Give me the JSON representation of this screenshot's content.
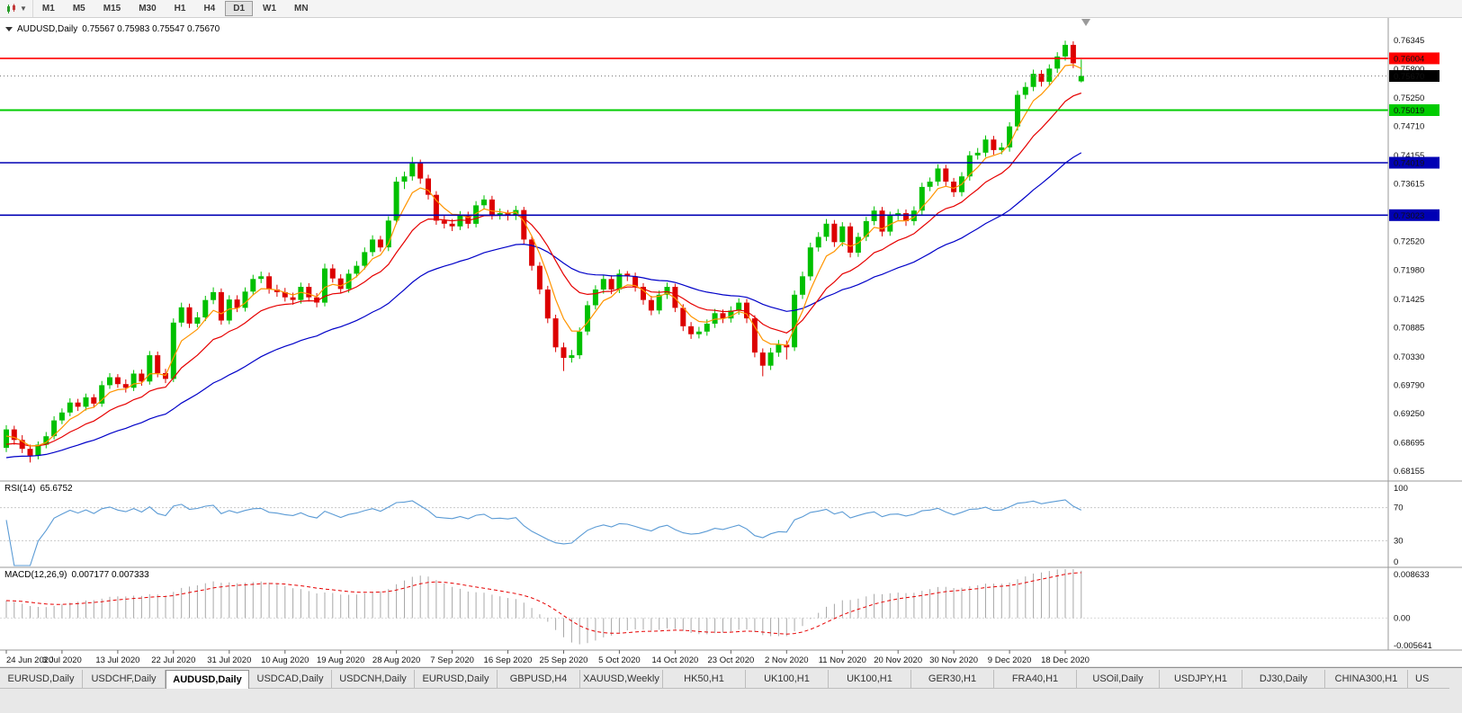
{
  "toolbar": {
    "periods": [
      "M1",
      "M5",
      "M15",
      "M30",
      "H1",
      "H4",
      "D1",
      "W1",
      "MN"
    ],
    "active_period": "D1"
  },
  "chart": {
    "title": {
      "symbol": "AUDUSD,Daily",
      "ohlc": "0.75567 0.75983 0.75547 0.75670"
    }
  },
  "colors": {
    "bull": "#00C000",
    "bear": "#DC0000",
    "ma_fast": "#FF9500",
    "ma_mid": "#E60000",
    "ma_slow": "#0000C8",
    "rsi": "#5B9BD5",
    "macd_signal": "#E60000",
    "macd_hist": "#A8A8A8",
    "level_red": "#FF0000",
    "level_green": "#00CC00",
    "level_blue": "#0000B4"
  },
  "chart_data": {
    "type": "candlestick",
    "symbol": "AUDUSD",
    "timeframe": "Daily",
    "ylim": [
      0.67985,
      0.76772
    ],
    "current_price": 0.7567,
    "price_axis_ticks": [
      "0.76345",
      "0.75800",
      "0.75250",
      "0.74710",
      "0.74155",
      "0.73615",
      "0.72520",
      "0.71980",
      "0.71425",
      "0.70885",
      "0.70330",
      "0.69790",
      "0.69250",
      "0.68695",
      "0.68155"
    ],
    "levels": [
      {
        "value": 0.76004,
        "color": "#FF0000",
        "width": 1.6
      },
      {
        "value": 0.75019,
        "color": "#00CC00",
        "width": 2
      },
      {
        "value": 0.74019,
        "color": "#0000B4",
        "width": 1.6
      },
      {
        "value": 0.73023,
        "color": "#0000B4",
        "width": 1.6
      }
    ],
    "badges": [
      {
        "value": 0.76004,
        "label": "0.76004",
        "color": "#FF0000"
      },
      {
        "value": 0.7567,
        "label": "0.75670",
        "color": "#000000"
      },
      {
        "value": 0.75019,
        "label": "0.75019",
        "color": "#00CC00"
      },
      {
        "value": 0.74019,
        "label": "0.74019",
        "color": "#0000B4"
      },
      {
        "value": 0.73023,
        "label": "0.73023",
        "color": "#0000B4"
      }
    ],
    "x_labels": [
      "24 Jun 2020",
      "3 Jul 2020",
      "13 Jul 2020",
      "22 Jul 2020",
      "31 Jul 2020",
      "10 Aug 2020",
      "19 Aug 2020",
      "28 Aug 2020",
      "7 Sep 2020",
      "16 Sep 2020",
      "25 Sep 2020",
      "5 Oct 2020",
      "14 Oct 2020",
      "23 Oct 2020",
      "2 Nov 2020",
      "11 Nov 2020",
      "20 Nov 2020",
      "30 Nov 2020",
      "9 Dec 2020",
      "18 Dec 2020"
    ],
    "x_label_indices": [
      0,
      7,
      14,
      21,
      28,
      35,
      42,
      49,
      56,
      63,
      70,
      77,
      84,
      91,
      98,
      105,
      112,
      119,
      126,
      133
    ],
    "candles": [
      [
        0.686,
        0.6903,
        0.6852,
        0.6895
      ],
      [
        0.6895,
        0.6902,
        0.6866,
        0.6875
      ],
      [
        0.6875,
        0.6884,
        0.685,
        0.6858
      ],
      [
        0.6858,
        0.6866,
        0.6832,
        0.6845
      ],
      [
        0.6845,
        0.6872,
        0.6838,
        0.6866
      ],
      [
        0.6866,
        0.689,
        0.6859,
        0.6882
      ],
      [
        0.6882,
        0.692,
        0.6876,
        0.6912
      ],
      [
        0.6912,
        0.6935,
        0.6905,
        0.6927
      ],
      [
        0.6927,
        0.6954,
        0.692,
        0.6946
      ],
      [
        0.6946,
        0.6953,
        0.693,
        0.6938
      ],
      [
        0.6938,
        0.6963,
        0.6931,
        0.6956
      ],
      [
        0.6956,
        0.6962,
        0.6936,
        0.6944
      ],
      [
        0.6944,
        0.6987,
        0.6938,
        0.6979
      ],
      [
        0.6979,
        0.7002,
        0.6972,
        0.6994
      ],
      [
        0.6994,
        0.7,
        0.6974,
        0.6981
      ],
      [
        0.6981,
        0.699,
        0.6965,
        0.6974
      ],
      [
        0.6974,
        0.7008,
        0.6968,
        0.7001
      ],
      [
        0.7001,
        0.7009,
        0.6978,
        0.6986
      ],
      [
        0.6986,
        0.7044,
        0.698,
        0.7036
      ],
      [
        0.7036,
        0.7043,
        0.6994,
        0.7002
      ],
      [
        0.7002,
        0.701,
        0.6983,
        0.6991
      ],
      [
        0.6991,
        0.7106,
        0.6985,
        0.7098
      ],
      [
        0.7098,
        0.7136,
        0.709,
        0.7127
      ],
      [
        0.7127,
        0.7134,
        0.7088,
        0.7096
      ],
      [
        0.7096,
        0.7118,
        0.7089,
        0.7108
      ],
      [
        0.7108,
        0.7149,
        0.7101,
        0.7141
      ],
      [
        0.7141,
        0.7165,
        0.7133,
        0.7156
      ],
      [
        0.7156,
        0.7163,
        0.7094,
        0.7102
      ],
      [
        0.7102,
        0.715,
        0.7095,
        0.7142
      ],
      [
        0.7142,
        0.715,
        0.7118,
        0.7126
      ],
      [
        0.7126,
        0.7165,
        0.7119,
        0.7157
      ],
      [
        0.7157,
        0.7189,
        0.715,
        0.7181
      ],
      [
        0.7181,
        0.7195,
        0.7173,
        0.7186
      ],
      [
        0.7186,
        0.7193,
        0.7153,
        0.7161
      ],
      [
        0.7161,
        0.717,
        0.7147,
        0.7156
      ],
      [
        0.7156,
        0.7164,
        0.7138,
        0.7146
      ],
      [
        0.7146,
        0.7155,
        0.7132,
        0.7141
      ],
      [
        0.7141,
        0.7174,
        0.7134,
        0.7166
      ],
      [
        0.7166,
        0.7173,
        0.7138,
        0.7146
      ],
      [
        0.7146,
        0.7154,
        0.7127,
        0.7136
      ],
      [
        0.7136,
        0.721,
        0.7129,
        0.7201
      ],
      [
        0.7201,
        0.7209,
        0.7174,
        0.7182
      ],
      [
        0.7182,
        0.719,
        0.7154,
        0.7162
      ],
      [
        0.7162,
        0.7199,
        0.7155,
        0.7191
      ],
      [
        0.7191,
        0.7215,
        0.7184,
        0.7206
      ],
      [
        0.7206,
        0.7241,
        0.7199,
        0.7232
      ],
      [
        0.7232,
        0.7264,
        0.7224,
        0.7256
      ],
      [
        0.7256,
        0.7263,
        0.7233,
        0.7241
      ],
      [
        0.7241,
        0.73,
        0.7234,
        0.7292
      ],
      [
        0.7292,
        0.7375,
        0.7285,
        0.7366
      ],
      [
        0.7366,
        0.7385,
        0.7352,
        0.7376
      ],
      [
        0.7376,
        0.7413,
        0.7368,
        0.7401
      ],
      [
        0.7401,
        0.7408,
        0.7362,
        0.7372
      ],
      [
        0.7372,
        0.7379,
        0.7332,
        0.7341
      ],
      [
        0.7341,
        0.7348,
        0.7284,
        0.7292
      ],
      [
        0.7292,
        0.7302,
        0.7277,
        0.7286
      ],
      [
        0.7286,
        0.7295,
        0.7272,
        0.7281
      ],
      [
        0.7281,
        0.731,
        0.7274,
        0.7302
      ],
      [
        0.7302,
        0.7309,
        0.7277,
        0.7286
      ],
      [
        0.7286,
        0.7329,
        0.7279,
        0.7321
      ],
      [
        0.7321,
        0.734,
        0.7313,
        0.7332
      ],
      [
        0.7332,
        0.7339,
        0.7294,
        0.7302
      ],
      [
        0.7302,
        0.7315,
        0.7294,
        0.7306
      ],
      [
        0.7306,
        0.7312,
        0.7292,
        0.7301
      ],
      [
        0.7301,
        0.732,
        0.7293,
        0.7312
      ],
      [
        0.7312,
        0.7318,
        0.7247,
        0.7256
      ],
      [
        0.7256,
        0.7263,
        0.7197,
        0.7206
      ],
      [
        0.7206,
        0.7213,
        0.7152,
        0.7161
      ],
      [
        0.7161,
        0.7168,
        0.7097,
        0.7106
      ],
      [
        0.7106,
        0.7113,
        0.7042,
        0.7051
      ],
      [
        0.7051,
        0.706,
        0.7006,
        0.7031
      ],
      [
        0.7031,
        0.7046,
        0.7022,
        0.7036
      ],
      [
        0.7036,
        0.7089,
        0.7029,
        0.7081
      ],
      [
        0.7081,
        0.7139,
        0.7074,
        0.7131
      ],
      [
        0.7131,
        0.7169,
        0.7123,
        0.7161
      ],
      [
        0.7161,
        0.7189,
        0.7153,
        0.7181
      ],
      [
        0.7181,
        0.7188,
        0.7152,
        0.7161
      ],
      [
        0.7161,
        0.7199,
        0.7154,
        0.7191
      ],
      [
        0.7191,
        0.7196,
        0.7177,
        0.7186
      ],
      [
        0.7186,
        0.7193,
        0.7157,
        0.7166
      ],
      [
        0.7166,
        0.7173,
        0.7132,
        0.7141
      ],
      [
        0.7141,
        0.7149,
        0.7112,
        0.7121
      ],
      [
        0.7121,
        0.7159,
        0.7114,
        0.7151
      ],
      [
        0.7151,
        0.7174,
        0.7143,
        0.7166
      ],
      [
        0.7166,
        0.7172,
        0.7118,
        0.7126
      ],
      [
        0.7126,
        0.7133,
        0.7082,
        0.7091
      ],
      [
        0.7091,
        0.7099,
        0.7067,
        0.7076
      ],
      [
        0.7076,
        0.709,
        0.7068,
        0.7081
      ],
      [
        0.7081,
        0.7104,
        0.7073,
        0.7096
      ],
      [
        0.7096,
        0.7124,
        0.7088,
        0.7116
      ],
      [
        0.7116,
        0.7123,
        0.7097,
        0.7106
      ],
      [
        0.7106,
        0.7129,
        0.7098,
        0.7121
      ],
      [
        0.7121,
        0.7144,
        0.7113,
        0.7136
      ],
      [
        0.7136,
        0.7143,
        0.7097,
        0.7106
      ],
      [
        0.7106,
        0.7112,
        0.7032,
        0.7041
      ],
      [
        0.7041,
        0.7049,
        0.6996,
        0.7016
      ],
      [
        0.7016,
        0.705,
        0.7008,
        0.7041
      ],
      [
        0.7041,
        0.7065,
        0.7033,
        0.7056
      ],
      [
        0.7056,
        0.7064,
        0.7028,
        0.7051
      ],
      [
        0.7051,
        0.7159,
        0.7044,
        0.7151
      ],
      [
        0.7151,
        0.7195,
        0.7143,
        0.7186
      ],
      [
        0.7186,
        0.725,
        0.7178,
        0.7241
      ],
      [
        0.7241,
        0.727,
        0.7233,
        0.7261
      ],
      [
        0.7261,
        0.7295,
        0.7253,
        0.7286
      ],
      [
        0.7286,
        0.7293,
        0.7242,
        0.7251
      ],
      [
        0.7251,
        0.7289,
        0.7243,
        0.7281
      ],
      [
        0.7281,
        0.7288,
        0.7222,
        0.7231
      ],
      [
        0.7231,
        0.7269,
        0.7223,
        0.7261
      ],
      [
        0.7261,
        0.7299,
        0.7253,
        0.7291
      ],
      [
        0.7291,
        0.7319,
        0.7283,
        0.7311
      ],
      [
        0.7311,
        0.7318,
        0.7262,
        0.7271
      ],
      [
        0.7271,
        0.7309,
        0.7263,
        0.7301
      ],
      [
        0.7301,
        0.7314,
        0.7293,
        0.7306
      ],
      [
        0.7306,
        0.7313,
        0.7282,
        0.7291
      ],
      [
        0.7291,
        0.7319,
        0.7283,
        0.7311
      ],
      [
        0.7311,
        0.7364,
        0.7303,
        0.7356
      ],
      [
        0.7356,
        0.7374,
        0.7348,
        0.7366
      ],
      [
        0.7366,
        0.7399,
        0.7358,
        0.7391
      ],
      [
        0.7391,
        0.7398,
        0.7357,
        0.7366
      ],
      [
        0.7366,
        0.7373,
        0.7337,
        0.7346
      ],
      [
        0.7346,
        0.7384,
        0.7338,
        0.7376
      ],
      [
        0.7376,
        0.7424,
        0.7368,
        0.7416
      ],
      [
        0.7416,
        0.743,
        0.7408,
        0.7421
      ],
      [
        0.7421,
        0.7454,
        0.7413,
        0.7446
      ],
      [
        0.7446,
        0.7453,
        0.7417,
        0.7426
      ],
      [
        0.7426,
        0.744,
        0.7418,
        0.7431
      ],
      [
        0.7431,
        0.7479,
        0.7423,
        0.7471
      ],
      [
        0.7471,
        0.7539,
        0.7463,
        0.7531
      ],
      [
        0.7531,
        0.7555,
        0.7523,
        0.7546
      ],
      [
        0.7546,
        0.7579,
        0.7538,
        0.7571
      ],
      [
        0.7571,
        0.7578,
        0.7547,
        0.7556
      ],
      [
        0.7556,
        0.7589,
        0.7548,
        0.7581
      ],
      [
        0.7581,
        0.7612,
        0.7573,
        0.7604
      ],
      [
        0.7604,
        0.7634,
        0.7596,
        0.7626
      ],
      [
        0.7626,
        0.7633,
        0.7582,
        0.7591
      ],
      [
        0.75567,
        0.75983,
        0.75547,
        0.7567
      ]
    ]
  },
  "rsi_indicator": {
    "label": "RSI(14)",
    "value": "65.6752",
    "period": 14,
    "levels": [
      70,
      30
    ],
    "axis": [
      "100",
      "70",
      "30",
      "0"
    ]
  },
  "macd_indicator": {
    "label": "MACD(12,26,9)",
    "values": "0.007177 0.007333",
    "max": 0.008633,
    "min": -0.005641,
    "axis": [
      "0.008633",
      "0.00",
      "-0.005641"
    ]
  },
  "tabs": [
    {
      "label": "EURUSD,Daily"
    },
    {
      "label": "USDCHF,Daily"
    },
    {
      "label": "AUDUSD,Daily",
      "active": true
    },
    {
      "label": "USDCAD,Daily"
    },
    {
      "label": "USDCNH,Daily"
    },
    {
      "label": "EURUSD,Daily"
    },
    {
      "label": "GBPUSD,H4"
    },
    {
      "label": "XAUUSD,Weekly"
    },
    {
      "label": "HK50,H1"
    },
    {
      "label": "UK100,H1"
    },
    {
      "label": "UK100,H1"
    },
    {
      "label": "GER30,H1"
    },
    {
      "label": "FRA40,H1"
    },
    {
      "label": "USOil,Daily"
    },
    {
      "label": "USDJPY,H1"
    },
    {
      "label": "DJ30,Daily"
    },
    {
      "label": "CHINA300,H1"
    },
    {
      "label": "US",
      "truncated": true
    }
  ]
}
